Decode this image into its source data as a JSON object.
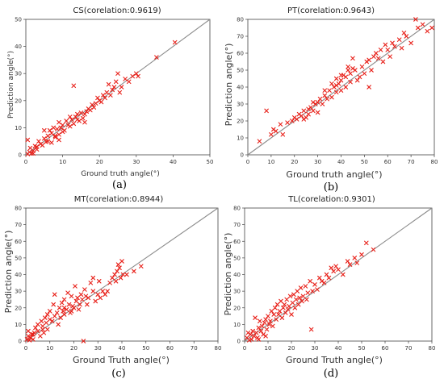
{
  "colors": {
    "marker": "#e8211a",
    "identity_line": "#8a8a8a"
  },
  "chart_data": [
    {
      "type": "scatter",
      "title": "CS(corelation:0.9619)",
      "xlabel": "Ground truth angle(°)",
      "ylabel": "Prediction angle(°)",
      "caption": "(a)",
      "xlim": [
        0,
        50
      ],
      "ylim": [
        0,
        50
      ],
      "xticks": [
        0,
        10,
        20,
        30,
        40,
        50
      ],
      "yticks": [
        0,
        10,
        20,
        30,
        40,
        50
      ],
      "reference_line": [
        [
          0,
          0
        ],
        [
          50,
          50
        ]
      ],
      "marker": "x",
      "points": [
        [
          0.5,
          0.3
        ],
        [
          1,
          1
        ],
        [
          1.2,
          2.5
        ],
        [
          1.5,
          0.5
        ],
        [
          2,
          1.5
        ],
        [
          0.5,
          5.5
        ],
        [
          2.5,
          3.2
        ],
        [
          3,
          2
        ],
        [
          3.5,
          5
        ],
        [
          4,
          4
        ],
        [
          4.5,
          3.5
        ],
        [
          5,
          6
        ],
        [
          5.5,
          4.8
        ],
        [
          6,
          7
        ],
        [
          6.5,
          9
        ],
        [
          7,
          8
        ],
        [
          7.5,
          10
        ],
        [
          8,
          6.5
        ],
        [
          8.5,
          9.5
        ],
        [
          9,
          7.5
        ],
        [
          9,
          12
        ],
        [
          9.5,
          10
        ],
        [
          10,
          11
        ],
        [
          10,
          8.5
        ],
        [
          10.5,
          9
        ],
        [
          11,
          12.5
        ],
        [
          11.5,
          11
        ],
        [
          12,
          10.5
        ],
        [
          12,
          14
        ],
        [
          12.5,
          13
        ],
        [
          13,
          11.5
        ],
        [
          13,
          25.5
        ],
        [
          13.5,
          14
        ],
        [
          14,
          15
        ],
        [
          14.5,
          12.5
        ],
        [
          15,
          15.5
        ],
        [
          15.5,
          13.5
        ],
        [
          16,
          15
        ],
        [
          16.5,
          16
        ],
        [
          17,
          17
        ],
        [
          17.5,
          16.5
        ],
        [
          18,
          18.5
        ],
        [
          18.5,
          17.5
        ],
        [
          19,
          19
        ],
        [
          19.5,
          21
        ],
        [
          20,
          20
        ],
        [
          20.5,
          19.5
        ],
        [
          21,
          22
        ],
        [
          21.5,
          21
        ],
        [
          22,
          23
        ],
        [
          22.5,
          26
        ],
        [
          23,
          22
        ],
        [
          23.5,
          24
        ],
        [
          24,
          25
        ],
        [
          24.5,
          27
        ],
        [
          25,
          30
        ],
        [
          25.5,
          23
        ],
        [
          26,
          25
        ],
        [
          27,
          28
        ],
        [
          28,
          27
        ],
        [
          29,
          29
        ],
        [
          30,
          30
        ],
        [
          30.5,
          29
        ],
        [
          35.5,
          36
        ],
        [
          40.5,
          41.5
        ],
        [
          3,
          3
        ],
        [
          6,
          5
        ],
        [
          8,
          7
        ],
        [
          7,
          4.5
        ],
        [
          5,
          9
        ],
        [
          2,
          0.5
        ],
        [
          16,
          12
        ],
        [
          14,
          13
        ],
        [
          9,
          5.5
        ]
      ]
    },
    {
      "type": "scatter",
      "title": "PT(corelation:0.9643)",
      "xlabel": "Ground truth angle(°)",
      "ylabel": "Prediction angle(°)",
      "caption": "(b)",
      "xlim": [
        0,
        80
      ],
      "ylim": [
        0,
        80
      ],
      "xticks": [
        0,
        10,
        20,
        30,
        40,
        50,
        60,
        70,
        80
      ],
      "yticks": [
        0,
        10,
        20,
        30,
        40,
        50,
        60,
        70,
        80
      ],
      "reference_line": [
        [
          0,
          0
        ],
        [
          80,
          80
        ]
      ],
      "marker": "x",
      "points": [
        [
          5,
          8
        ],
        [
          8,
          26
        ],
        [
          10,
          12
        ],
        [
          11,
          15
        ],
        [
          12,
          14
        ],
        [
          14,
          18
        ],
        [
          15,
          12
        ],
        [
          17,
          19
        ],
        [
          19,
          20
        ],
        [
          20,
          22
        ],
        [
          21,
          21
        ],
        [
          22,
          24
        ],
        [
          23,
          23
        ],
        [
          24,
          26
        ],
        [
          25,
          22
        ],
        [
          26,
          27
        ],
        [
          27,
          28
        ],
        [
          28,
          26
        ],
        [
          29,
          30
        ],
        [
          30,
          31
        ],
        [
          30,
          25
        ],
        [
          31,
          33
        ],
        [
          32,
          30
        ],
        [
          33,
          35
        ],
        [
          34,
          33
        ],
        [
          35,
          38
        ],
        [
          36,
          34
        ],
        [
          36,
          42
        ],
        [
          37,
          40
        ],
        [
          38,
          37
        ],
        [
          38,
          45
        ],
        [
          39,
          42
        ],
        [
          40,
          44
        ],
        [
          40,
          38
        ],
        [
          41,
          47
        ],
        [
          42,
          46
        ],
        [
          42,
          40
        ],
        [
          43,
          50
        ],
        [
          43,
          52
        ],
        [
          44,
          48
        ],
        [
          44,
          43
        ],
        [
          45,
          51
        ],
        [
          45,
          57
        ],
        [
          46,
          50
        ],
        [
          47,
          44
        ],
        [
          48,
          46
        ],
        [
          49,
          52
        ],
        [
          50,
          48
        ],
        [
          51,
          55
        ],
        [
          52,
          56
        ],
        [
          52,
          40
        ],
        [
          53,
          50
        ],
        [
          54,
          58
        ],
        [
          55,
          60
        ],
        [
          56,
          57
        ],
        [
          57,
          62
        ],
        [
          58,
          55
        ],
        [
          59,
          65
        ],
        [
          60,
          62
        ],
        [
          61,
          58
        ],
        [
          62,
          66
        ],
        [
          63,
          64
        ],
        [
          65,
          68
        ],
        [
          66,
          63
        ],
        [
          67,
          72
        ],
        [
          68,
          70
        ],
        [
          70,
          66
        ],
        [
          72,
          80
        ],
        [
          73,
          75
        ],
        [
          75,
          77
        ],
        [
          77,
          73
        ],
        [
          79,
          75
        ],
        [
          26,
          24
        ],
        [
          33,
          38
        ],
        [
          38,
          41
        ],
        [
          40,
          47
        ],
        [
          24,
          21
        ],
        [
          28,
          31
        ]
      ]
    },
    {
      "type": "scatter",
      "title": "MT(corelation:0.8944)",
      "xlabel": "Ground Truth angle(°)",
      "ylabel": "Prediction angle(°)",
      "caption": "(c)",
      "xlim": [
        0,
        80
      ],
      "ylim": [
        0,
        80
      ],
      "xticks": [
        0,
        10,
        20,
        30,
        40,
        50,
        60,
        70,
        80
      ],
      "yticks": [
        0,
        10,
        20,
        30,
        40,
        50,
        60,
        70,
        80
      ],
      "reference_line": [
        [
          0,
          0
        ],
        [
          80,
          80
        ]
      ],
      "marker": "x",
      "points": [
        [
          0.5,
          1
        ],
        [
          1,
          3
        ],
        [
          1,
          6
        ],
        [
          1.5,
          0.5
        ],
        [
          2,
          2
        ],
        [
          2.5,
          4
        ],
        [
          3,
          1
        ],
        [
          3.5,
          5
        ],
        [
          4,
          8
        ],
        [
          5,
          6
        ],
        [
          5,
          10
        ],
        [
          6,
          3
        ],
        [
          6.5,
          12
        ],
        [
          7,
          9
        ],
        [
          7.5,
          5
        ],
        [
          8,
          14
        ],
        [
          8.5,
          11
        ],
        [
          9,
          16
        ],
        [
          9,
          7
        ],
        [
          10,
          13
        ],
        [
          10,
          18
        ],
        [
          11,
          12
        ],
        [
          11.5,
          22
        ],
        [
          12,
          28
        ],
        [
          12,
          15
        ],
        [
          13,
          17
        ],
        [
          13.5,
          10
        ],
        [
          14,
          20
        ],
        [
          14.5,
          14
        ],
        [
          15,
          23
        ],
        [
          15.5,
          18
        ],
        [
          16,
          25
        ],
        [
          16,
          16
        ],
        [
          17,
          19
        ],
        [
          17.5,
          29
        ],
        [
          18,
          22
        ],
        [
          18.5,
          17
        ],
        [
          19,
          27
        ],
        [
          19.5,
          21
        ],
        [
          20,
          20
        ],
        [
          20.5,
          33
        ],
        [
          21,
          24
        ],
        [
          21.5,
          26
        ],
        [
          22,
          19
        ],
        [
          22.5,
          22
        ],
        [
          23,
          28
        ],
        [
          23.5,
          25
        ],
        [
          24,
          0
        ],
        [
          24.5,
          31
        ],
        [
          25,
          27
        ],
        [
          25.5,
          22
        ],
        [
          26,
          26
        ],
        [
          27,
          35
        ],
        [
          28,
          30
        ],
        [
          28,
          38
        ],
        [
          29,
          24
        ],
        [
          30,
          28
        ],
        [
          30.5,
          36
        ],
        [
          31,
          26
        ],
        [
          32,
          30
        ],
        [
          33,
          28
        ],
        [
          34,
          30
        ],
        [
          35,
          35
        ],
        [
          36,
          38
        ],
        [
          37,
          40
        ],
        [
          37.5,
          36
        ],
        [
          38,
          42
        ],
        [
          38.5,
          46
        ],
        [
          39,
          44
        ],
        [
          39.5,
          38
        ],
        [
          40,
          48
        ],
        [
          40.5,
          40
        ],
        [
          42,
          40
        ],
        [
          45,
          42
        ],
        [
          48,
          45
        ],
        [
          3,
          4
        ],
        [
          7,
          7
        ],
        [
          16,
          20
        ],
        [
          19,
          18
        ]
      ]
    },
    {
      "type": "scatter",
      "title": "TL(corelation:0.9301)",
      "xlabel": "Ground Truth angle(°)",
      "ylabel": "Prediction angle(°)",
      "caption": "(d)",
      "xlim": [
        0,
        80
      ],
      "ylim": [
        0,
        80
      ],
      "xticks": [
        0,
        10,
        20,
        30,
        40,
        50,
        60,
        70,
        80
      ],
      "yticks": [
        0,
        10,
        20,
        30,
        40,
        50,
        60,
        70,
        80
      ],
      "reference_line": [
        [
          0,
          0
        ],
        [
          80,
          80
        ]
      ],
      "marker": "x",
      "points": [
        [
          1,
          2
        ],
        [
          2,
          0.5
        ],
        [
          2.5,
          4
        ],
        [
          3,
          1
        ],
        [
          3.5,
          6
        ],
        [
          4,
          3
        ],
        [
          4.5,
          14
        ],
        [
          5,
          5
        ],
        [
          5.5,
          2
        ],
        [
          6,
          8
        ],
        [
          6.5,
          12
        ],
        [
          7,
          6
        ],
        [
          7.5,
          9
        ],
        [
          8,
          4
        ],
        [
          8.5,
          11
        ],
        [
          9,
          13
        ],
        [
          9.5,
          7
        ],
        [
          10,
          15
        ],
        [
          10.5,
          10
        ],
        [
          11,
          12
        ],
        [
          11.5,
          18
        ],
        [
          12,
          9
        ],
        [
          12.5,
          16
        ],
        [
          13,
          20
        ],
        [
          13.5,
          13
        ],
        [
          14,
          22
        ],
        [
          14.5,
          16
        ],
        [
          15,
          18
        ],
        [
          15.5,
          24
        ],
        [
          16,
          14
        ],
        [
          16.5,
          20
        ],
        [
          17,
          22
        ],
        [
          17.5,
          17
        ],
        [
          18,
          25
        ],
        [
          18.5,
          19
        ],
        [
          19,
          21
        ],
        [
          19.5,
          27
        ],
        [
          20,
          16
        ],
        [
          20.5,
          23
        ],
        [
          21,
          28
        ],
        [
          21.5,
          20
        ],
        [
          22,
          25
        ],
        [
          22.5,
          30
        ],
        [
          23,
          22
        ],
        [
          23.5,
          26
        ],
        [
          24,
          32
        ],
        [
          24.5,
          24
        ],
        [
          25,
          27
        ],
        [
          26,
          33
        ],
        [
          26.5,
          25
        ],
        [
          27,
          29
        ],
        [
          28,
          36
        ],
        [
          28.5,
          7
        ],
        [
          29,
          30
        ],
        [
          30,
          34
        ],
        [
          31,
          31
        ],
        [
          32,
          38
        ],
        [
          33,
          36
        ],
        [
          34,
          35
        ],
        [
          35,
          40
        ],
        [
          36,
          38
        ],
        [
          37,
          44
        ],
        [
          38,
          42
        ],
        [
          39,
          45
        ],
        [
          40,
          43
        ],
        [
          42,
          40
        ],
        [
          44,
          48
        ],
        [
          45,
          46
        ],
        [
          47,
          50
        ],
        [
          48,
          47
        ],
        [
          50,
          52
        ],
        [
          52,
          59
        ],
        [
          55,
          55
        ],
        [
          1.5,
          5
        ],
        [
          6,
          1
        ],
        [
          9,
          3
        ]
      ]
    }
  ]
}
